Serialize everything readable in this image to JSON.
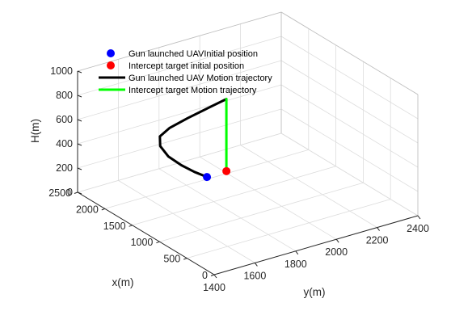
{
  "chart_data": {
    "type": "line3d",
    "xlabel": "x(m)",
    "ylabel": "y(m)",
    "zlabel": "H(m)",
    "xlim": [
      0,
      2500
    ],
    "ylim": [
      1400,
      2400
    ],
    "zlim": [
      0,
      1000
    ],
    "xticks": [
      0,
      500,
      1000,
      1500,
      2000,
      2500
    ],
    "yticks": [
      1400,
      1600,
      1800,
      2000,
      2200,
      2400
    ],
    "zticks": [
      0,
      200,
      400,
      600,
      800,
      1000
    ],
    "grid": true,
    "legend_position": "top-left",
    "legend": [
      {
        "label": "Gun launched UAVInitial position",
        "kind": "marker",
        "color": "#0000ff"
      },
      {
        "label": "Intercept target initial position",
        "kind": "marker",
        "color": "#ff0000"
      },
      {
        "label": "Gun launched UAV Motion trajectory",
        "kind": "line",
        "color": "#000000"
      },
      {
        "label": "Intercept target Motion trajectory",
        "kind": "line",
        "color": "#00ff00"
      }
    ],
    "series": [
      {
        "name": "Gun launched UAV Motion trajectory",
        "type": "line",
        "color": "#000000",
        "points": [
          [
            1250,
            1700,
            320
          ],
          [
            1330,
            1660,
            360
          ],
          [
            1420,
            1620,
            410
          ],
          [
            1530,
            1585,
            470
          ],
          [
            1640,
            1575,
            530
          ],
          [
            1740,
            1600,
            570
          ],
          [
            1820,
            1670,
            585
          ],
          [
            1900,
            1780,
            590
          ],
          [
            1980,
            1900,
            593
          ],
          [
            2050,
            2010,
            595
          ]
        ]
      },
      {
        "name": "Intercept target Motion trajectory",
        "type": "line",
        "color": "#00ff00",
        "points": [
          [
            2050,
            2010,
            595
          ],
          [
            2050,
            2010,
            300
          ],
          [
            2050,
            2010,
            0
          ]
        ]
      },
      {
        "name": "Gun launched UAVInitial position",
        "type": "marker",
        "color": "#0000ff",
        "points": [
          [
            1250,
            1700,
            320
          ]
        ]
      },
      {
        "name": "Intercept target initial position",
        "type": "marker",
        "color": "#ff0000",
        "points": [
          [
            2050,
            2010,
            0
          ]
        ]
      }
    ]
  }
}
